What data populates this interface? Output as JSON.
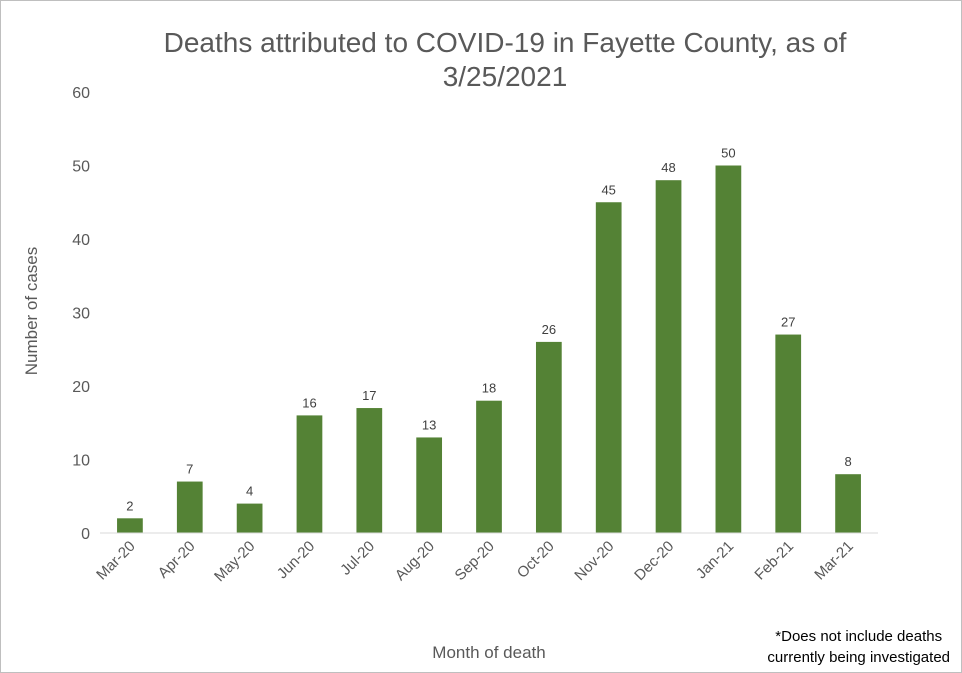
{
  "chart_data": {
    "type": "bar",
    "title_line1": "Deaths attributed to COVID-19 in Fayette County, as of",
    "title_line2": "3/25/2021",
    "xlabel": "Month of death",
    "ylabel": "Number of cases",
    "ylim": [
      0,
      60
    ],
    "yticks": [
      0,
      10,
      20,
      30,
      40,
      50,
      60
    ],
    "categories": [
      "Mar-20",
      "Apr-20",
      "May-20",
      "Jun-20",
      "Jul-20",
      "Aug-20",
      "Sep-20",
      "Oct-20",
      "Nov-20",
      "Dec-20",
      "Jan-21",
      "Feb-21",
      "Mar-21"
    ],
    "values": [
      2,
      7,
      4,
      16,
      17,
      13,
      18,
      26,
      45,
      48,
      50,
      27,
      8
    ],
    "bar_color": "#548235",
    "grid": false,
    "data_labels": true
  },
  "footnote_line1": "*Does not include deaths",
  "footnote_line2": "currently being investigated"
}
